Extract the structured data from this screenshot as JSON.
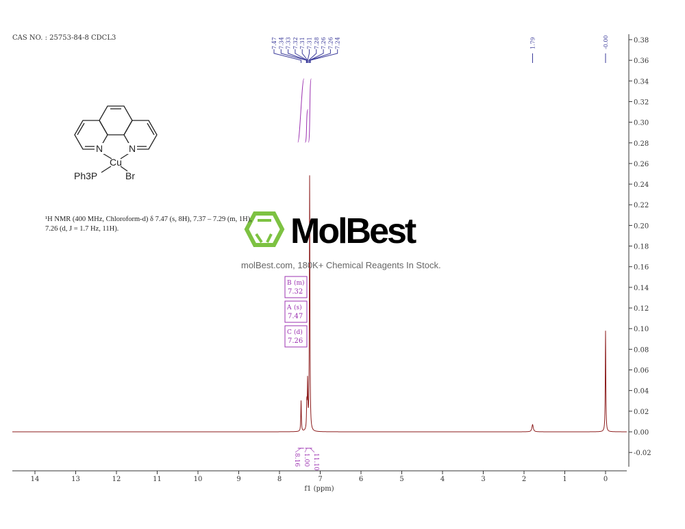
{
  "header": {
    "cas": "CAS NO. : 25753-84-8 CDCL3"
  },
  "nmr_description": {
    "line1": "¹H NMR (400 MHz, Chloroform-d) δ 7.47 (s, 8H), 7.37 – 7.29 (m, 1H),",
    "line2": "7.26 (d, J = 1.7 Hz, 11H)."
  },
  "structure": {
    "n_left": "N",
    "n_right": "N",
    "metal": "Cu",
    "ligand_p": "Ph3P",
    "ligand_br": "Br"
  },
  "watermark": {
    "logo": "MolBest",
    "site": "molBest.com, 180K+ Chemical Reagents In Stock."
  },
  "multiplet_boxes": [
    {
      "label": "B",
      "type": "(m)",
      "shift": "7.32"
    },
    {
      "label": "A",
      "type": "(s)",
      "shift": "7.47"
    },
    {
      "label": "C",
      "type": "(d)",
      "shift": "7.26"
    }
  ],
  "colors": {
    "spectrum": "#8b1a1a",
    "integral": "#9b30b0",
    "peak_labels": "#3a3a9a",
    "axis": "#333333",
    "logo_green": "#7dc242"
  },
  "chart_data": {
    "type": "line",
    "xlabel": "f1 (ppm)",
    "xlim": [
      14.55,
      -0.52
    ],
    "ylim": [
      -0.04,
      0.38
    ],
    "x_ticks": [
      "14",
      "13",
      "12",
      "11",
      "10",
      "9",
      "8",
      "7",
      "6",
      "5",
      "4",
      "3",
      "2",
      "1",
      "0"
    ],
    "y_ticks": [
      "-0.02",
      "0.00",
      "0.02",
      "0.04",
      "0.06",
      "0.08",
      "0.10",
      "0.12",
      "0.14",
      "0.16",
      "0.18",
      "0.20",
      "0.22",
      "0.24",
      "0.26",
      "0.28",
      "0.30",
      "0.32",
      "0.34",
      "0.36",
      "0.38"
    ],
    "peak_labels": [
      "7.47",
      "7.34",
      "7.33",
      "7.32",
      "7.31",
      "7.31",
      "7.28",
      "7.26",
      "7.26",
      "7.24",
      "1.79",
      "-0.00"
    ],
    "peaks": [
      {
        "ppm": 7.47,
        "intensity": 0.03
      },
      {
        "ppm": 7.33,
        "intensity": 0.025
      },
      {
        "ppm": 7.31,
        "intensity": 0.045
      },
      {
        "ppm": 7.26,
        "intensity": 0.248
      },
      {
        "ppm": 1.79,
        "intensity": 0.007
      },
      {
        "ppm": 0.0,
        "intensity": 0.098
      }
    ],
    "integrals": [
      {
        "from": 7.55,
        "to": 7.4,
        "value": "8.16"
      },
      {
        "from": 7.37,
        "to": 7.29,
        "value": "1.00"
      },
      {
        "from": 7.29,
        "to": 7.2,
        "value": "11.10"
      }
    ]
  }
}
